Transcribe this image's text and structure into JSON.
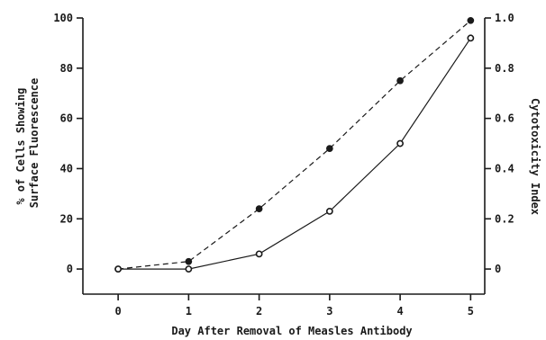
{
  "chart_data": {
    "type": "line",
    "title": "",
    "xlabel": "Day After Removal of Measles Antibody",
    "ylabel": [
      "% of Cells Showing",
      "Surface Fluorescence"
    ],
    "y2label": "Cytotoxicity Index",
    "x": [
      0,
      1,
      2,
      3,
      4,
      5
    ],
    "xlim": [
      -0.5,
      5.2
    ],
    "ylim": [
      -10,
      100
    ],
    "y2lim": [
      -0.1,
      1.0
    ],
    "x_ticks": [
      "0",
      "1",
      "2",
      "3",
      "4",
      "5"
    ],
    "y_ticks": [
      "0",
      "20",
      "40",
      "60",
      "80",
      "100"
    ],
    "y2_ticks": [
      "0",
      "0.2",
      "0.4",
      "0.6",
      "0.8",
      "1.0"
    ],
    "grid": false,
    "series": [
      {
        "axis": "left",
        "style": "dashed",
        "marker": "filled-circle",
        "values": [
          0,
          3,
          24,
          48,
          75,
          99
        ]
      },
      {
        "axis": "right",
        "style": "solid",
        "marker": "open-circle",
        "values": [
          0,
          0,
          0.06,
          0.23,
          0.5,
          0.92
        ]
      }
    ]
  },
  "colors": {
    "ink": "#1a1a1a",
    "background": "#ffffff"
  }
}
